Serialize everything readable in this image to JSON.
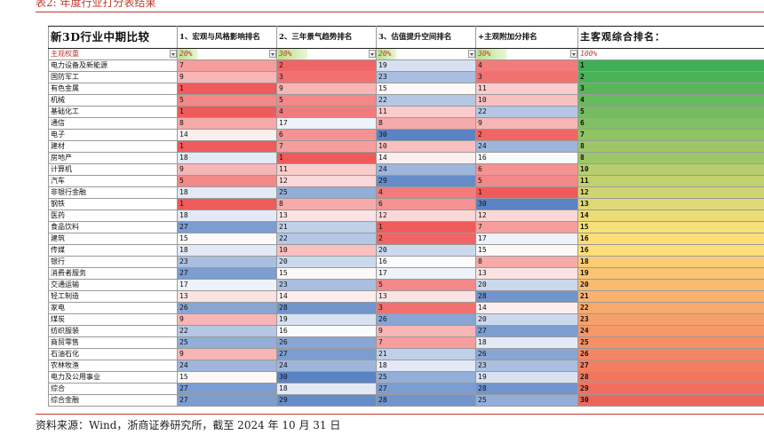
{
  "caption": "表2:  年度行业打分表结果",
  "source": "资料来源：Wind，浙商证券研究所，截至 2024 年 10 月 31 日",
  "table": {
    "headers": [
      "新3D行业中期比较",
      "1、宏观与风格影响排名",
      "2、三年景气趋势排名",
      "3、估值提升空间排名",
      "+主观附加分排名",
      "主客观综合排名："
    ],
    "weights": [
      "主观权重",
      "20%",
      "30%",
      "20%",
      "30%",
      "100%"
    ],
    "rows": [
      {
        "name": "电力设备及新能源",
        "r1": 7,
        "r2": 2,
        "r3": 19,
        "r4": 4,
        "total": 1
      },
      {
        "name": "国防军工",
        "r1": 9,
        "r2": 3,
        "r3": 23,
        "r4": 3,
        "total": 2
      },
      {
        "name": "有色金属",
        "r1": 1,
        "r2": 9,
        "r3": 15,
        "r4": 11,
        "total": 3
      },
      {
        "name": "机械",
        "r1": 5,
        "r2": 5,
        "r3": 22,
        "r4": 10,
        "total": 4
      },
      {
        "name": "基础化工",
        "r1": 1,
        "r2": 4,
        "r3": 11,
        "r4": 22,
        "total": 5
      },
      {
        "name": "通信",
        "r1": 8,
        "r2": 17,
        "r3": 8,
        "r4": 9,
        "total": 6
      },
      {
        "name": "电子",
        "r1": 14,
        "r2": 6,
        "r3": 30,
        "r4": 2,
        "total": 7
      },
      {
        "name": "建材",
        "r1": 1,
        "r2": 7,
        "r3": 10,
        "r4": 24,
        "total": 8
      },
      {
        "name": "房地产",
        "r1": 18,
        "r2": 1,
        "r3": 14,
        "r4": 16,
        "total": 8
      },
      {
        "name": "计算机",
        "r1": 9,
        "r2": 11,
        "r3": 24,
        "r4": 6,
        "total": 10
      },
      {
        "name": "汽车",
        "r1": 5,
        "r2": 12,
        "r3": 29,
        "r4": 5,
        "total": 11
      },
      {
        "name": "非银行金融",
        "r1": 18,
        "r2": 25,
        "r3": 4,
        "r4": 1,
        "total": 12
      },
      {
        "name": "钢铁",
        "r1": 1,
        "r2": 8,
        "r3": 6,
        "r4": 30,
        "total": 13
      },
      {
        "name": "医药",
        "r1": 18,
        "r2": 13,
        "r3": 12,
        "r4": 12,
        "total": 14
      },
      {
        "name": "食品饮料",
        "r1": 27,
        "r2": 21,
        "r3": 1,
        "r4": 7,
        "total": 15
      },
      {
        "name": "建筑",
        "r1": 15,
        "r2": 22,
        "r3": 2,
        "r4": 17,
        "total": 16
      },
      {
        "name": "传媒",
        "r1": 18,
        "r2": 10,
        "r3": 20,
        "r4": 15,
        "total": 16
      },
      {
        "name": "银行",
        "r1": 23,
        "r2": 20,
        "r3": 16,
        "r4": 8,
        "total": 18
      },
      {
        "name": "消费者服务",
        "r1": 27,
        "r2": 15,
        "r3": 17,
        "r4": 13,
        "total": 19
      },
      {
        "name": "交通运输",
        "r1": 17,
        "r2": 23,
        "r3": 5,
        "r4": 20,
        "total": 20
      },
      {
        "name": "轻工制造",
        "r1": 13,
        "r2": 14,
        "r3": 13,
        "r4": 28,
        "total": 21
      },
      {
        "name": "家电",
        "r1": 26,
        "r2": 28,
        "r3": 3,
        "r4": 14,
        "total": 22
      },
      {
        "name": "煤炭",
        "r1": 9,
        "r2": 19,
        "r3": 26,
        "r4": 20,
        "total": 23
      },
      {
        "name": "纺织服装",
        "r1": 22,
        "r2": 16,
        "r3": 9,
        "r4": 27,
        "total": 24
      },
      {
        "name": "商贸零售",
        "r1": 25,
        "r2": 26,
        "r3": 7,
        "r4": 18,
        "total": 25
      },
      {
        "name": "石油石化",
        "r1": 9,
        "r2": 27,
        "r3": 21,
        "r4": 26,
        "total": 26
      },
      {
        "name": "农林牧渔",
        "r1": 24,
        "r2": 24,
        "r3": 18,
        "r4": 23,
        "total": 27
      },
      {
        "name": "电力及公用事业",
        "r1": 15,
        "r2": 30,
        "r3": 25,
        "r4": 19,
        "total": 28
      },
      {
        "name": "综合",
        "r1": 27,
        "r2": 18,
        "r3": 27,
        "r4": 28,
        "total": 29
      },
      {
        "name": "综合金融",
        "r1": 27,
        "r2": 29,
        "r3": 28,
        "r4": 25,
        "total": 30
      }
    ]
  },
  "colors": {
    "caption_red": "#c0392b",
    "rank_best": "#ef5a5a",
    "rank_mid": "#ffffff",
    "rank_worst": "#5a83c4",
    "weight_green": "#b7e08a",
    "total_best": "#3fae55",
    "total_mid": "#ffe27a",
    "total_worst": "#f0655a"
  }
}
